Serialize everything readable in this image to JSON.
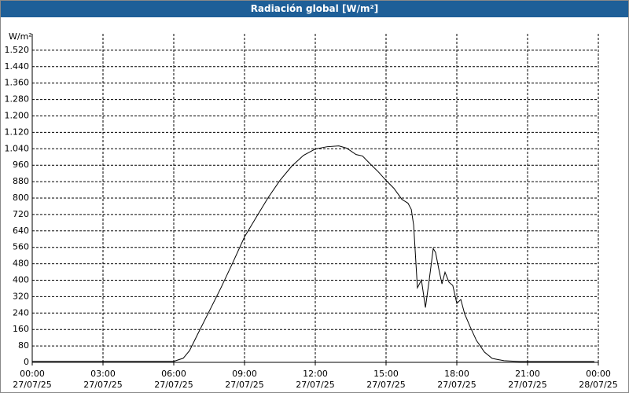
{
  "chart_data": {
    "type": "line",
    "title": "Radiación global [W/m²]",
    "y_label": "W/m²",
    "xlim": [
      0,
      24
    ],
    "xticks": [
      {
        "value": 0,
        "label": "00:00\n27/07/25"
      },
      {
        "value": 3,
        "label": "03:00\n27/07/25"
      },
      {
        "value": 6,
        "label": "06:00\n27/07/25"
      },
      {
        "value": 9,
        "label": "09:00\n27/07/25"
      },
      {
        "value": 12,
        "label": "12:00\n27/07/25"
      },
      {
        "value": 15,
        "label": "15:00\n27/07/25"
      },
      {
        "value": 18,
        "label": "18:00\n27/07/25"
      },
      {
        "value": 21,
        "label": "21:00\n27/07/25"
      },
      {
        "value": 24,
        "label": "00:00\n28/07/25"
      }
    ],
    "ylim": [
      0,
      1600
    ],
    "yticks": [
      0,
      80,
      160,
      240,
      320,
      400,
      480,
      560,
      640,
      720,
      800,
      880,
      960,
      {
        "value": 1040,
        "label": "1.040"
      },
      {
        "value": 1120,
        "label": "1.120"
      },
      {
        "value": 1200,
        "label": "1.200"
      },
      {
        "value": 1280,
        "label": "1.280"
      },
      {
        "value": 1360,
        "label": "1.360"
      },
      {
        "value": 1440,
        "label": "1.440"
      },
      {
        "value": 1520,
        "label": "1.520"
      }
    ],
    "grid": true,
    "color": "#000000",
    "x": [
      0,
      6,
      6.4,
      6.67,
      7,
      7.5,
      8,
      8.5,
      9,
      9.5,
      10,
      10.5,
      11,
      11.5,
      12,
      12.5,
      13,
      13.33,
      13.73,
      14,
      14.33,
      14.67,
      15,
      15.33,
      15.67,
      15.93,
      16.07,
      16.17,
      16.27,
      16.33,
      16.5,
      16.67,
      16.83,
      17,
      17.1,
      17.23,
      17.37,
      17.5,
      17.67,
      17.83,
      18,
      18.17,
      18.33,
      18.57,
      18.83,
      19.17,
      19.5,
      20,
      20.67,
      23.83
    ],
    "values": [
      5,
      5,
      20,
      57,
      134,
      248,
      363,
      485,
      611,
      707,
      802,
      886,
      955,
      1008,
      1039,
      1050,
      1054,
      1043,
      1012,
      1005,
      966,
      928,
      886,
      848,
      794,
      775,
      745,
      668,
      477,
      363,
      401,
      267,
      401,
      554,
      535,
      458,
      382,
      439,
      390,
      374,
      287,
      306,
      237,
      172,
      107,
      50,
      19,
      8,
      4,
      4
    ]
  }
}
